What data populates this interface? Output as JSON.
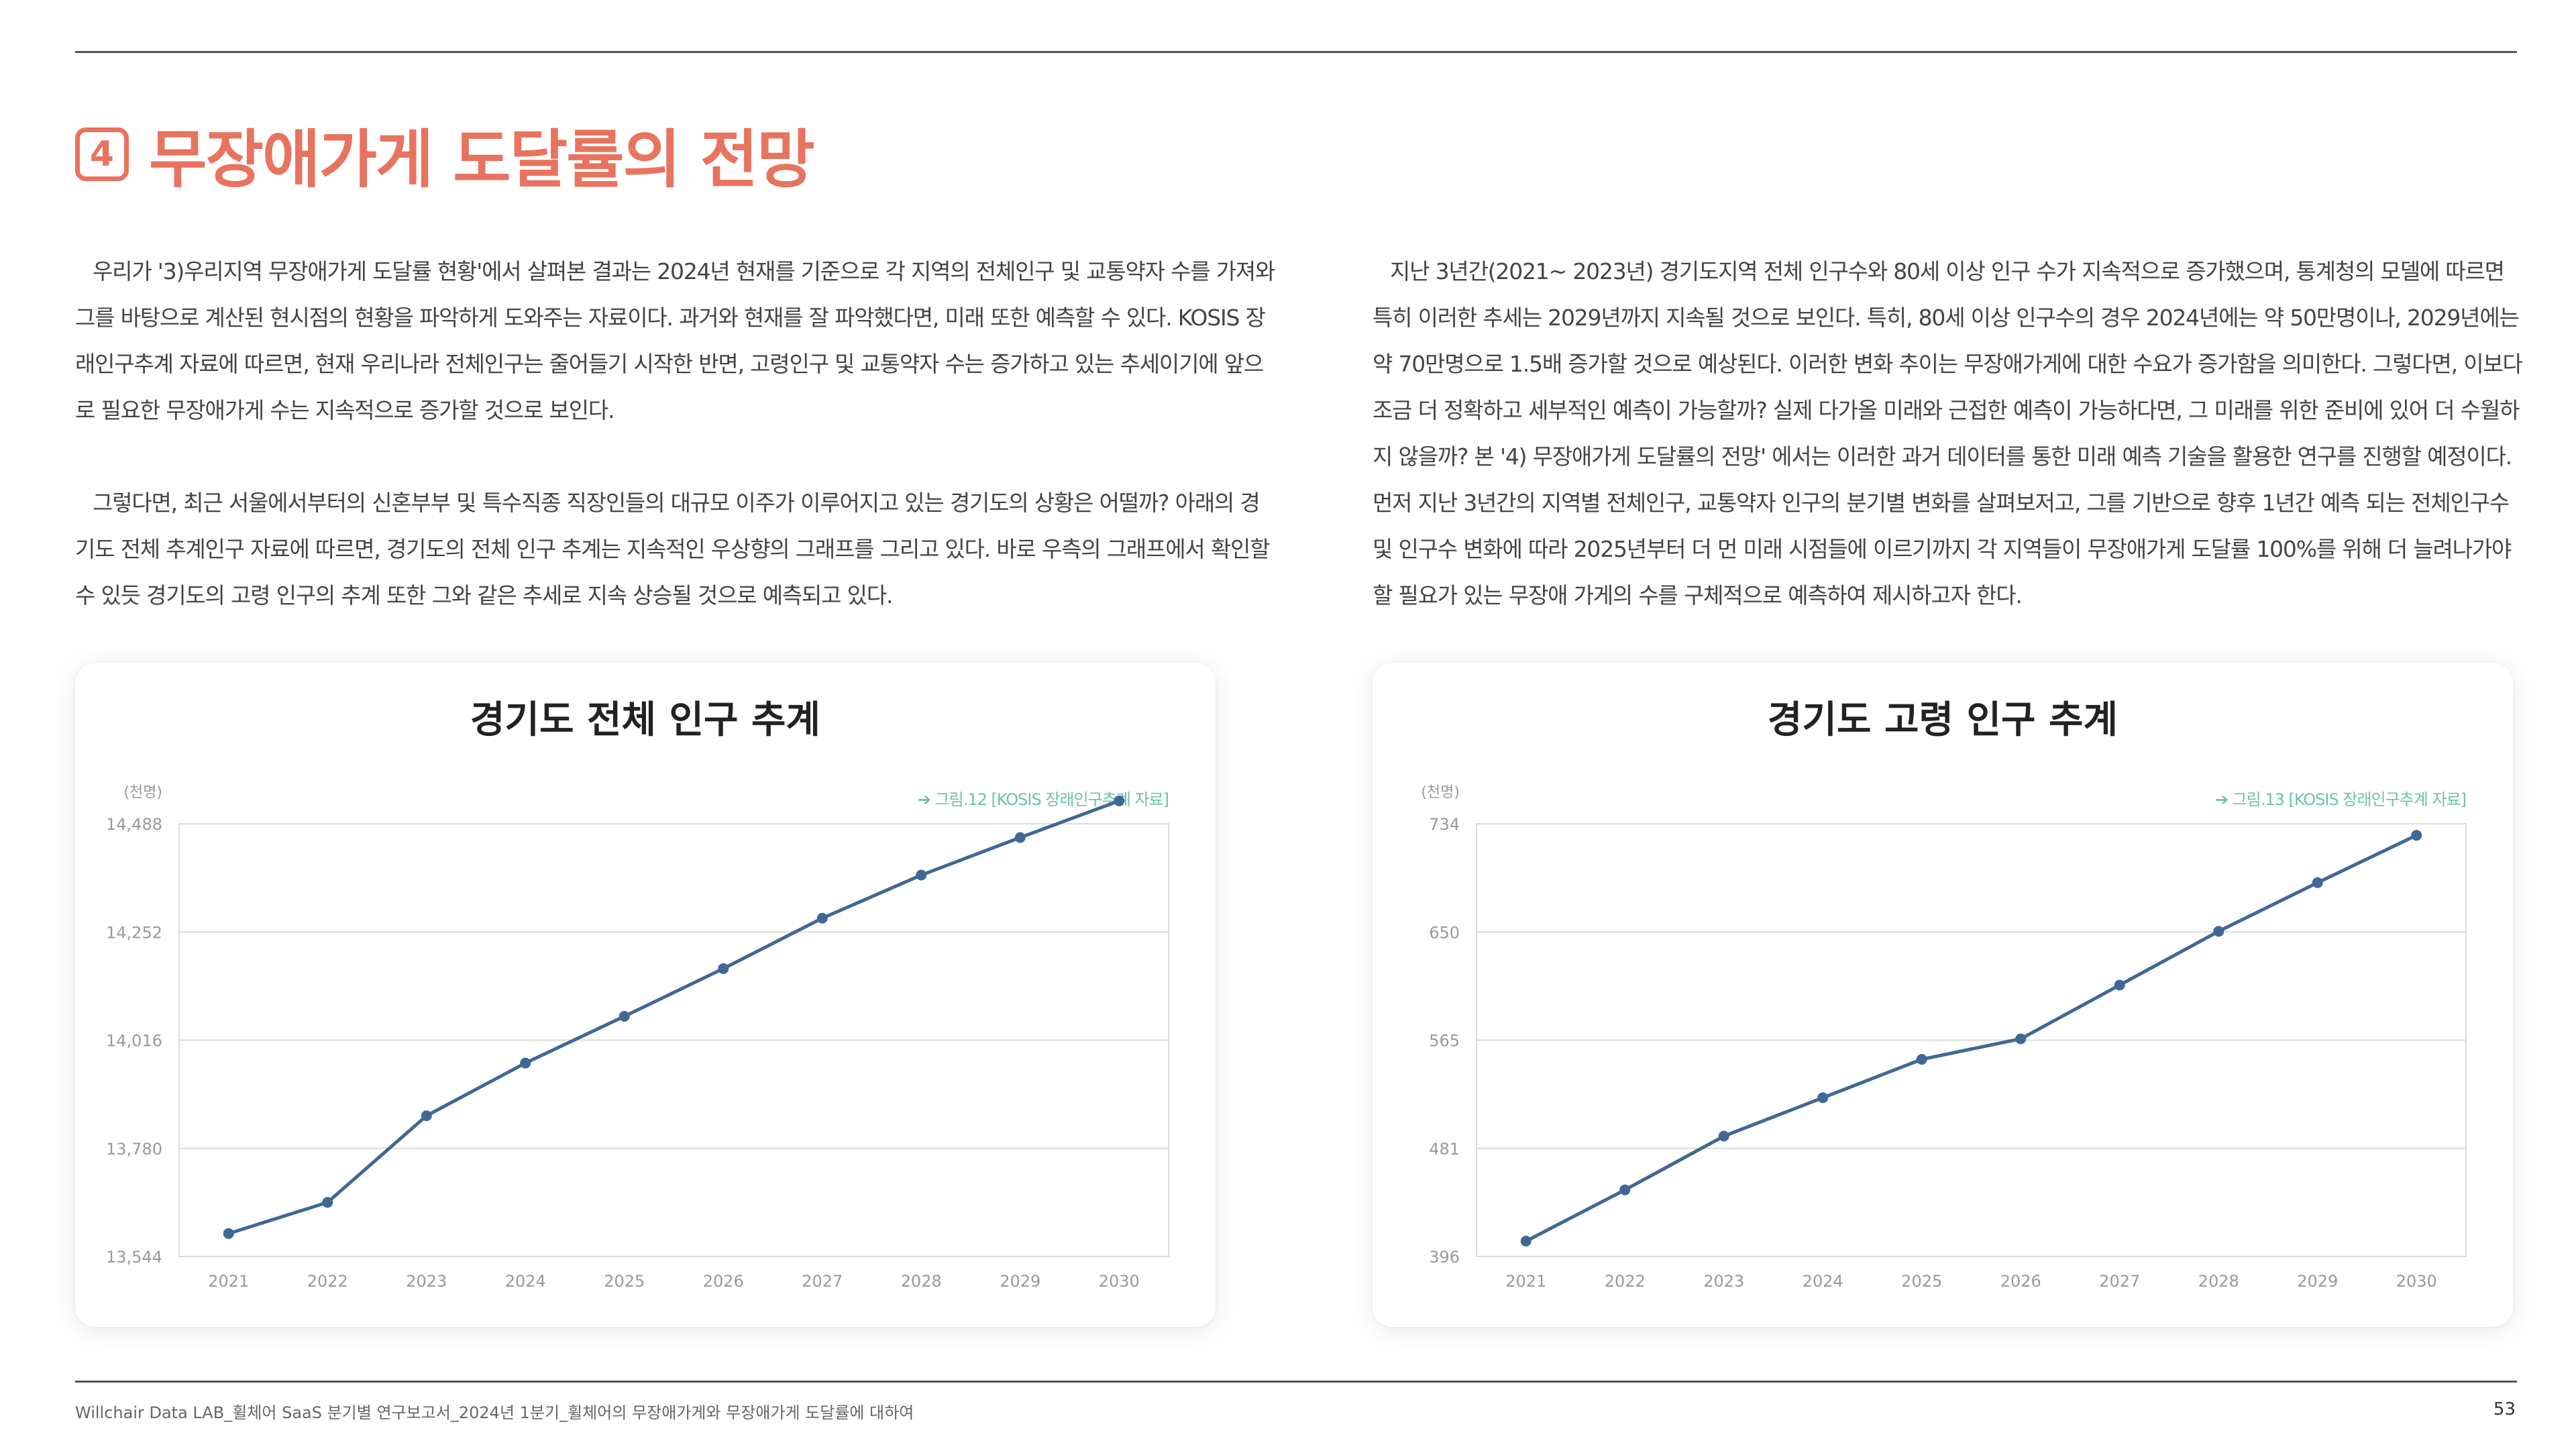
{
  "section": {
    "number": "4",
    "title": "무장애가게 도달률의 전망"
  },
  "body": {
    "left_paragraphs": [
      "우리가 '3)우리지역 무장애가게 도달률 현황'에서 살펴본 결과는 2024년 현재를 기준으로 각 지역의 전체인구 및 교통약자 수를 가져와 그를 바탕으로 계산된 현시점의 현황을 파악하게 도와주는 자료이다. 과거와 현재를 잘 파악했다면, 미래 또한 예측할 수 있다. KOSIS 장래인구추계 자료에 따르면, 현재 우리나라 전체인구는 줄어들기 시작한 반면, 고령인구 및 교통약자 수는 증가하고 있는 추세이기에 앞으로 필요한 무장애가게 수는 지속적으로 증가할 것으로 보인다.",
      "그렇다면, 최근 서울에서부터의 신혼부부 및 특수직종 직장인들의 대규모 이주가 이루어지고 있는 경기도의 상황은 어떨까? 아래의 경기도 전체 추계인구 자료에 따르면, 경기도의 전체 인구 추계는 지속적인 우상향의 그래프를 그리고 있다. 바로 우측의 그래프에서 확인할 수 있듯 경기도의 고령 인구의 추계 또한 그와 같은 추세로 지속 상승될 것으로 예측되고 있다."
    ],
    "right_paragraphs": [
      "지난 3년간(2021~ 2023년) 경기도지역 전체 인구수와 80세 이상 인구 수가 지속적으로 증가했으며, 통계청의 모델에 따르면 특히 이러한 추세는 2029년까지 지속될 것으로 보인다. 특히, 80세 이상 인구수의 경우 2024년에는 약 50만명이나, 2029년에는 약 70만명으로 1.5배 증가할 것으로 예상된다. 이러한 변화 추이는 무장애가게에 대한 수요가 증가함을 의미한다.  그렇다면, 이보다 조금 더 정확하고 세부적인 예측이 가능할까? 실제 다가올 미래와 근접한 예측이 가능하다면, 그 미래를 위한 준비에 있어 더 수월하지 않을까? 본 '4) 무장애가게 도달률의 전망' 에서는 이러한 과거 데이터를 통한 미래 예측 기술을 활용한 연구를 진행할 예정이다. 먼저 지난 3년간의 지역별 전체인구, 교통약자 인구의 분기별 변화를 살펴보저고, 그를 기반으로 향후 1년간 예측 되는 전체인구수 및 인구수 변화에 따라 2025년부터 더 먼 미래 시점들에 이르기까지 각 지역들이 무장애가게 도달률 100%를 위해 더 늘려나가야 할 필요가 있는 무장애 가게의 수를 구체적으로 예측하여 제시하고자 한다."
    ]
  },
  "chart_data": [
    {
      "type": "line",
      "title": "경기도 전체 인구 추계",
      "unit_label": "(천명)",
      "source": "➔ 그림.12 [KOSIS 장래인구추계 자료]",
      "x": [
        "2021",
        "2022",
        "2023",
        "2024",
        "2025",
        "2026",
        "2027",
        "2028",
        "2029",
        "2030"
      ],
      "y_ticks": [
        "14,488",
        "14,252",
        "14,016",
        "13,780",
        "13,544"
      ],
      "ylim": [
        13544,
        14488
      ],
      "grid": true,
      "series": [
        {
          "values": [
            13594,
            13662,
            13851,
            13966,
            14068,
            14172,
            14282,
            14376,
            14458,
            14538
          ]
        }
      ],
      "line_color": "#3f6896"
    },
    {
      "type": "line",
      "title": "경기도 고령 인구 추계",
      "unit_label": "(천명)",
      "source": "➔ 그림.13 [KOSIS 장래인구추계 자료]",
      "x": [
        "2021",
        "2022",
        "2023",
        "2024",
        "2025",
        "2026",
        "2027",
        "2028",
        "2029",
        "2030"
      ],
      "y_ticks": [
        "734",
        "650",
        "565",
        "481",
        "396"
      ],
      "ylim": [
        396,
        734
      ],
      "grid": true,
      "series": [
        {
          "values": [
            408,
            448,
            490,
            520,
            550,
            566,
            608,
            650,
            688,
            725
          ]
        }
      ],
      "line_color": "#3f6896"
    }
  ],
  "footer": {
    "text": "Willchair Data LAB_휠체어 SaaS 분기별 연구보고서_2024년 1분기_휠체어의 무장애가게와 무장애가게 도달률에 대하여",
    "page": "53"
  },
  "colors": {
    "accent": "#e8735f",
    "source_text": "#6cc4a1",
    "grid": "#dcdcdc",
    "axis_text": "#999999"
  }
}
